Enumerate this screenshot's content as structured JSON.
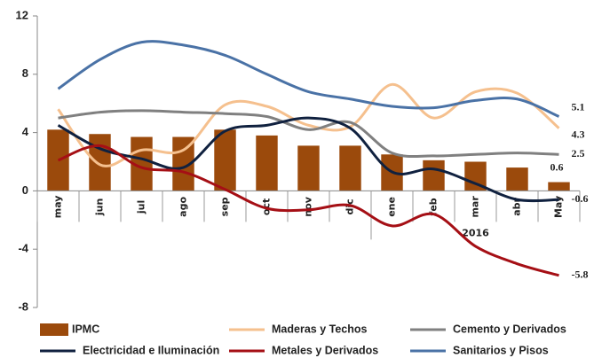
{
  "chart_data": {
    "type": "bar",
    "categories": [
      "may",
      "jun",
      "jul",
      "ago",
      "sep",
      "oct",
      "nov",
      "dic",
      "ene",
      "feb",
      "mar",
      "abr",
      "May"
    ],
    "group_label": "2016",
    "ylim": [
      -8,
      12
    ],
    "yticks": [
      -8,
      -4,
      0,
      4,
      8,
      12
    ],
    "series": [
      {
        "name": "IPMC",
        "type": "bar",
        "color": "#9b4a0c",
        "values": [
          4.2,
          3.9,
          3.7,
          3.7,
          4.2,
          3.8,
          3.1,
          3.1,
          2.5,
          2.1,
          2.0,
          1.6,
          0.6
        ]
      },
      {
        "name": "Maderas y Techos",
        "type": "line",
        "color": "#f5c08e",
        "values": [
          5.6,
          1.8,
          2.8,
          2.8,
          5.9,
          5.8,
          4.5,
          4.4,
          7.3,
          5.0,
          6.8,
          6.7,
          4.3
        ]
      },
      {
        "name": "Cemento y Derivados",
        "type": "line",
        "color": "#808080",
        "values": [
          5.0,
          5.4,
          5.5,
          5.4,
          5.3,
          5.1,
          4.2,
          4.7,
          2.6,
          2.4,
          2.5,
          2.6,
          2.5
        ]
      },
      {
        "name": "Electricidad e Iluminación",
        "type": "line",
        "color": "#10213f",
        "values": [
          4.5,
          2.9,
          2.2,
          1.6,
          4.1,
          4.5,
          5.0,
          4.3,
          1.3,
          1.5,
          0.5,
          -0.6,
          -0.6
        ]
      },
      {
        "name": "Metales y Derivados",
        "type": "line",
        "color": "#a50f15",
        "values": [
          2.1,
          3.1,
          1.6,
          1.3,
          0.1,
          -1.2,
          -1.3,
          -1.0,
          -2.4,
          -1.6,
          -3.8,
          -5.0,
          -5.8
        ]
      },
      {
        "name": "Sanitarios y Pisos",
        "type": "line",
        "color": "#4a72a6",
        "values": [
          7.0,
          9.0,
          10.2,
          10.0,
          9.3,
          8.0,
          6.8,
          6.3,
          5.8,
          5.7,
          6.2,
          6.3,
          5.1
        ]
      }
    ]
  }
}
